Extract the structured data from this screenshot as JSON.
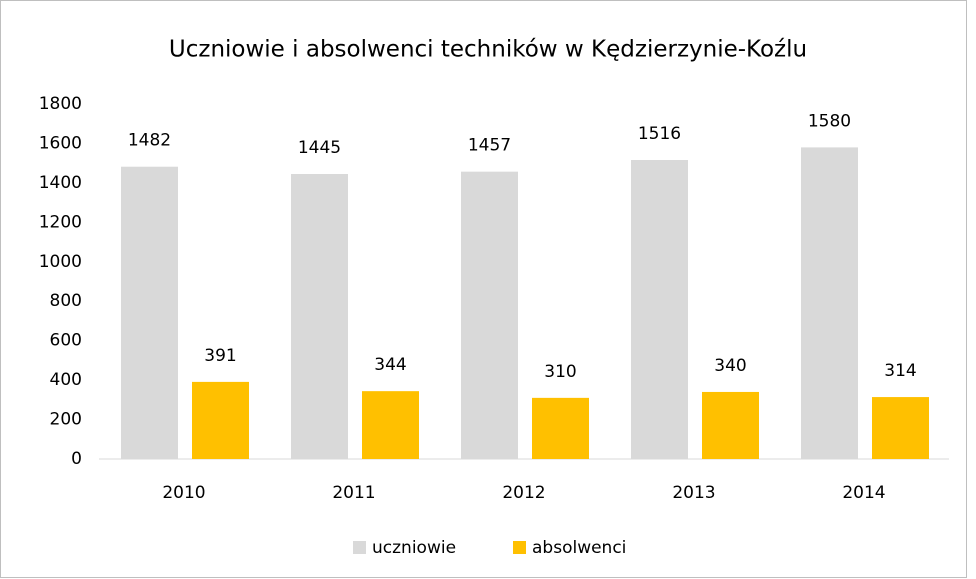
{
  "chart_data": {
    "type": "bar",
    "title": "Uczniowie i absolwenci techników w Kędzierzynie-Koźlu",
    "categories": [
      "2010",
      "2011",
      "2012",
      "2013",
      "2014"
    ],
    "series": [
      {
        "name": "uczniowie",
        "color": "#d9d9d9",
        "values": [
          1482,
          1445,
          1457,
          1516,
          1580
        ]
      },
      {
        "name": "absolwenci",
        "color": "#ffc000",
        "values": [
          391,
          344,
          310,
          340,
          314
        ]
      }
    ],
    "ylim": [
      0,
      1800
    ],
    "yticks": [
      0,
      200,
      400,
      600,
      800,
      1000,
      1200,
      1400,
      1600,
      1800
    ],
    "grid": false,
    "legend": "bottom"
  }
}
